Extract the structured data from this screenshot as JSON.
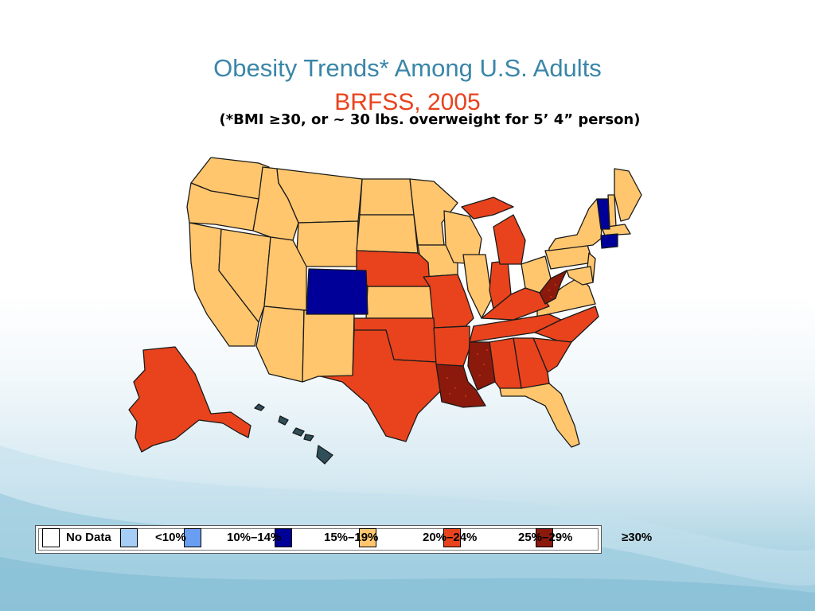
{
  "title": "Obesity Trends* Among U.S. Adults",
  "subtitle": "BRFSS, 2005",
  "note": "(*BMI ≥30, or ~ 30 lbs. overweight for 5’ 4” person)",
  "colors": {
    "no_data": "#ffffff",
    "lt10": "#a6cdf5",
    "10_14": "#6a9ef2",
    "15_19": "#000099",
    "20_24": "#ffc66e",
    "25_29": "#e8431d",
    "ge30": "#8b1a0c",
    "hawaii": "#2f4f5a"
  },
  "legend": [
    {
      "label": "No Data",
      "color": "#ffffff"
    },
    {
      "label": "<10%",
      "color": "#a6cdf5"
    },
    {
      "label": "10%–14%",
      "color": "#6a9ef2"
    },
    {
      "label": "15%–19%",
      "color": "#000099"
    },
    {
      "label": "20%–24%",
      "color": "#ffc66e"
    },
    {
      "label": "25%–29%",
      "color": "#e8431d"
    },
    {
      "label": "≥30%",
      "color": "#8b1a0c"
    }
  ]
}
